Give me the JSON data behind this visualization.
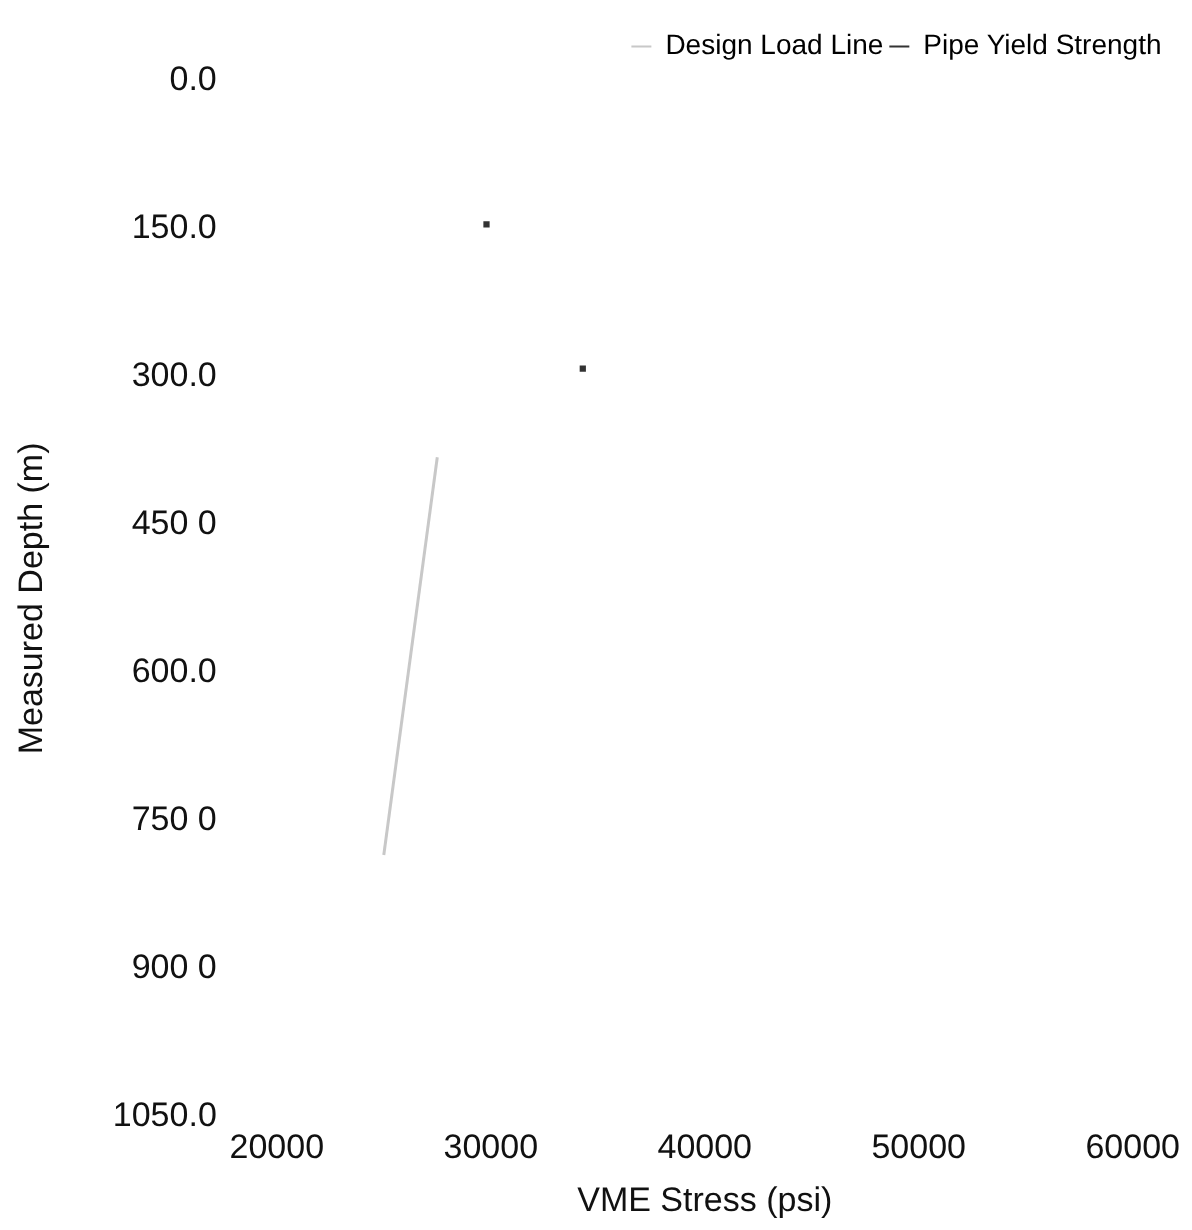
{
  "chart_data": {
    "type": "line",
    "xlabel": "VME Stress (psi)",
    "ylabel": "Measured Depth (m)",
    "xlim": [
      20000,
      60000
    ],
    "xticks": [
      20000,
      30000,
      40000,
      50000,
      60000
    ],
    "ylim": [
      1050,
      0
    ],
    "yticks": [
      {
        "value": 0,
        "label": "0.0"
      },
      {
        "value": 150,
        "label": "150.0"
      },
      {
        "value": 300,
        "label": "300.0"
      },
      {
        "value": 450,
        "label": "450 0"
      },
      {
        "value": 600,
        "label": "600.0"
      },
      {
        "value": 750,
        "label": "750 0"
      },
      {
        "value": 900,
        "label": "900 0"
      },
      {
        "value": 1050,
        "label": "1050.0"
      }
    ],
    "series": [
      {
        "name": "Design Load Line",
        "color": "#c8c8c8",
        "x": [
          27500,
          25000
        ],
        "values": [
          382,
          785
        ],
        "marker": "none"
      },
      {
        "name": "Pipe Yield Strength",
        "type": "scatter",
        "color": "#333333",
        "x": [
          29800,
          34300
        ],
        "values": [
          146,
          292
        ],
        "marker": "square"
      }
    ],
    "grid": false,
    "legend": "top right"
  }
}
